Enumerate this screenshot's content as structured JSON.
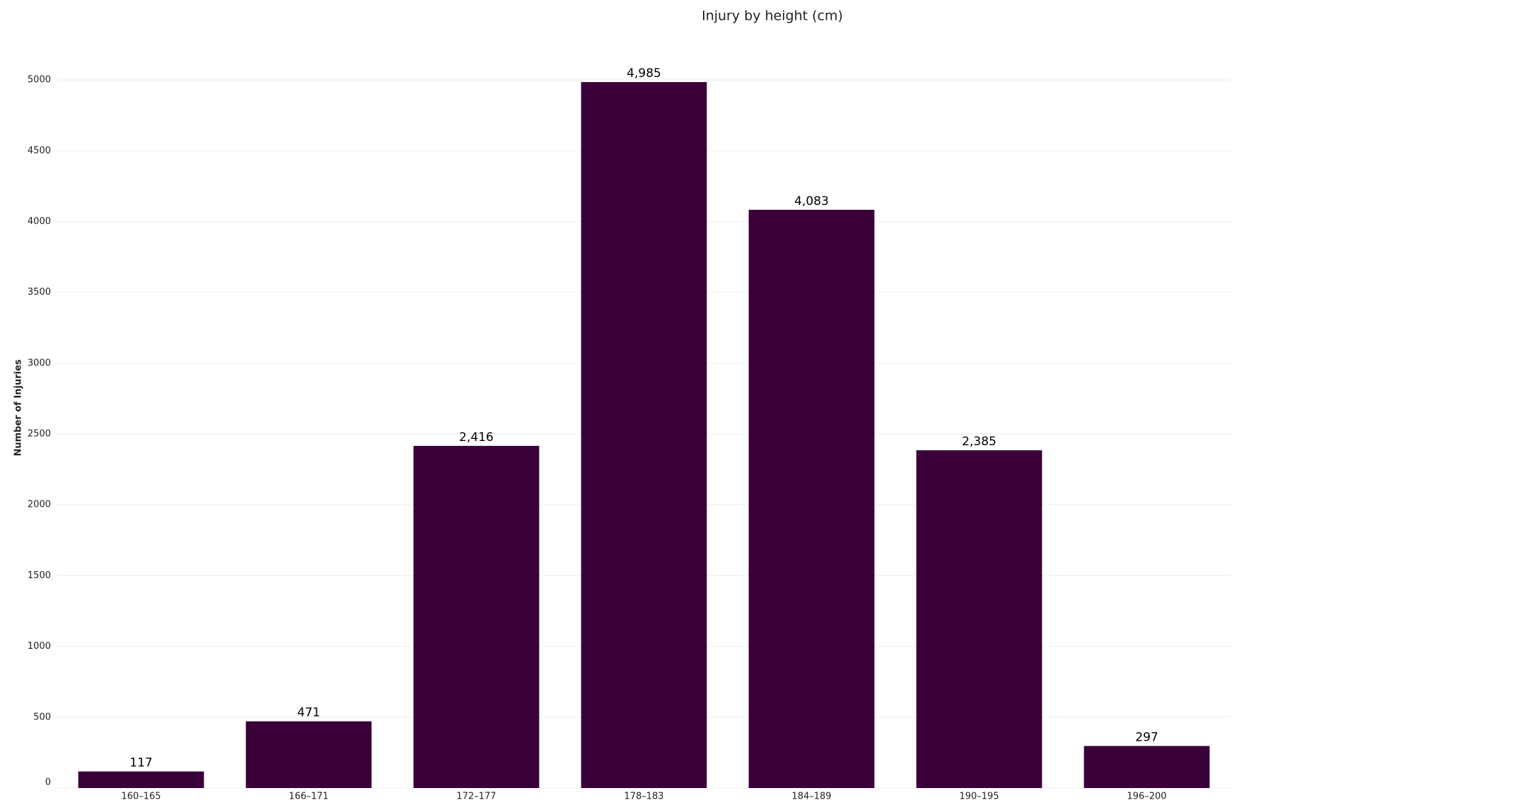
{
  "chart_data": {
    "type": "bar",
    "title": "Injury by height (cm)",
    "y_label": "Number of Injuries",
    "categories": [
      "160–165",
      "166–171",
      "172–177",
      "178–183",
      "184–189",
      "190–195",
      "196–200"
    ],
    "values": [
      117,
      471,
      2416,
      4985,
      4083,
      2385,
      297
    ],
    "value_labels": [
      "117",
      "471",
      "2,416",
      "4,985",
      "4,083",
      "2,385",
      "297"
    ],
    "color": "#3a003a",
    "ylim": [
      0,
      5300
    ],
    "yticks": [
      0,
      500,
      1000,
      1500,
      2000,
      2500,
      3000,
      3500,
      4000,
      4500,
      5000
    ],
    "grid": true
  }
}
